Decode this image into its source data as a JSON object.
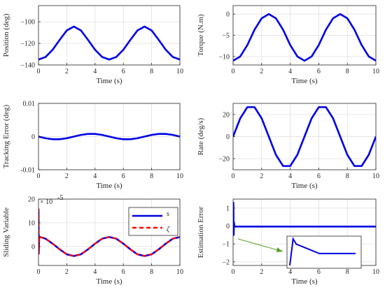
{
  "colors": {
    "line": "#0000e6",
    "dash": "#ff0000",
    "axis": "#262626",
    "grid": "#dcdcdc",
    "inset_arrow": "#5aa02c"
  },
  "chart_data": [
    {
      "id": "position",
      "type": "line",
      "xlabel": "Time (s)",
      "ylabel": "Position (deg)",
      "xlim": [
        0,
        10
      ],
      "ylim": [
        -140,
        -85
      ],
      "xticks": [
        0,
        2,
        4,
        6,
        8,
        10
      ],
      "yticks": [
        -140,
        -120,
        -100
      ],
      "grid": true,
      "series": [
        {
          "color": "#0000e6",
          "dashed": false,
          "x": [
            0,
            0.5,
            1,
            1.5,
            2,
            2.5,
            3,
            3.5,
            4,
            4.5,
            5,
            5.5,
            6,
            6.5,
            7,
            7.5,
            8,
            8.5,
            9,
            9.5,
            10
          ],
          "y": [
            -135,
            -132.6,
            -125.9,
            -116.7,
            -108,
            -104.4,
            -108,
            -116.7,
            -125.9,
            -132.6,
            -135,
            -132.6,
            -125.9,
            -116.7,
            -108,
            -104.4,
            -108,
            -116.7,
            -125.9,
            -132.6,
            -135
          ]
        }
      ]
    },
    {
      "id": "torque",
      "type": "line",
      "xlabel": "Time (s)",
      "ylabel": "Torque (N.m)",
      "xlim": [
        0,
        10
      ],
      "ylim": [
        -12,
        2
      ],
      "xticks": [
        0,
        2,
        4,
        6,
        8,
        10
      ],
      "yticks": [
        -10,
        -5,
        0
      ],
      "grid": true,
      "series": [
        {
          "color": "#0000e6",
          "dashed": false,
          "x": [
            0,
            0.5,
            1,
            1.5,
            2,
            2.5,
            3,
            3.5,
            4,
            4.5,
            5,
            5.5,
            6,
            6.5,
            7,
            7.5,
            8,
            8.5,
            9,
            9.5,
            10
          ],
          "y": [
            -11,
            -10,
            -7.3,
            -3.7,
            -1,
            0,
            -1,
            -3.7,
            -7.3,
            -10,
            -11,
            -10,
            -7.3,
            -3.7,
            -1,
            0,
            -1,
            -3.7,
            -7.3,
            -10,
            -11
          ]
        }
      ]
    },
    {
      "id": "tracking_error",
      "type": "line",
      "xlabel": "Time (s)",
      "ylabel": "Tracking Error (deg)",
      "xlim": [
        0,
        10
      ],
      "ylim": [
        -0.01,
        0.01
      ],
      "xticks": [
        0,
        2,
        4,
        6,
        8,
        10
      ],
      "yticks": [
        -0.01,
        0,
        0.01
      ],
      "ytick_labels": [
        "-0.01",
        "0",
        "0.01"
      ],
      "grid": true,
      "series": [
        {
          "color": "#0000e6",
          "dashed": false,
          "x": [
            0,
            0.5,
            1,
            1.5,
            2,
            2.5,
            3,
            3.5,
            4,
            4.5,
            5,
            5.5,
            6,
            6.5,
            7,
            7.5,
            8,
            8.5,
            9,
            9.5,
            10
          ],
          "y": [
            0,
            -0.0005,
            -0.0008,
            -0.0008,
            -0.0005,
            0,
            0.0005,
            0.0008,
            0.0008,
            0.0005,
            0,
            -0.0005,
            -0.0008,
            -0.0008,
            -0.0005,
            0,
            0.0005,
            0.0008,
            0.0008,
            0.0005,
            0
          ]
        }
      ]
    },
    {
      "id": "rate",
      "type": "line",
      "xlabel": "Time (s)",
      "ylabel": "Rate (deg/s)",
      "xlim": [
        0,
        10
      ],
      "ylim": [
        -30,
        30
      ],
      "xticks": [
        0,
        2,
        4,
        6,
        8,
        10
      ],
      "yticks": [
        -20,
        0,
        20
      ],
      "grid": true,
      "series": [
        {
          "color": "#0000e6",
          "dashed": false,
          "x": [
            0,
            0.5,
            1,
            1.5,
            2,
            2.5,
            3,
            3.5,
            4,
            4.5,
            5,
            5.5,
            6,
            6.5,
            7,
            7.5,
            8,
            8.5,
            9,
            9.5,
            10
          ],
          "y": [
            0,
            16.5,
            26.6,
            26.6,
            16.5,
            0,
            -16.5,
            -26.6,
            -26.6,
            -16.5,
            0,
            16.5,
            26.6,
            26.6,
            16.5,
            0,
            -16.5,
            -26.6,
            -26.6,
            -16.5,
            0
          ]
        }
      ]
    },
    {
      "id": "sliding",
      "type": "line",
      "xlabel": "Time (s)",
      "ylabel": "Sliding Variable",
      "xlim": [
        0,
        10
      ],
      "ylim": [
        -8,
        20
      ],
      "xticks": [
        0,
        2,
        4,
        6,
        8,
        10
      ],
      "yticks": [
        0,
        10,
        20
      ],
      "exponent_label": "× 10",
      "exponent_power": "-5",
      "grid": true,
      "legend": [
        "s",
        "ζ"
      ],
      "legend_position": "top-right",
      "series": [
        {
          "name": "s",
          "color": "#0000e6",
          "dashed": false,
          "x": [
            0,
            0.02,
            0.05,
            0.1,
            0.5,
            1,
            1.5,
            2,
            2.5,
            3,
            3.5,
            4,
            4.5,
            5,
            5.5,
            6,
            6.5,
            7,
            7.5,
            8,
            8.5,
            9,
            9.5,
            10
          ],
          "y": [
            16,
            -3,
            4.2,
            4,
            3.3,
            1.2,
            -1.2,
            -3.3,
            -4,
            -3.3,
            -1.2,
            1.2,
            3.3,
            4,
            3.3,
            1.2,
            -1.2,
            -3.3,
            -4,
            -3.3,
            -1.2,
            1.2,
            3.3,
            4
          ]
        },
        {
          "name": "ζ",
          "color": "#ff0000",
          "dashed": true,
          "x": [
            0,
            0.02,
            0.05,
            0.1,
            0.5,
            1,
            1.5,
            2,
            2.5,
            3,
            3.5,
            4,
            4.5,
            5,
            5.5,
            6,
            6.5,
            7,
            7.5,
            8,
            8.5,
            9,
            9.5,
            10
          ],
          "y": [
            16,
            -3,
            4.2,
            4,
            3.3,
            1.2,
            -1.2,
            -3.3,
            -4,
            -3.3,
            -1.2,
            1.2,
            3.3,
            4,
            3.3,
            1.2,
            -1.2,
            -3.3,
            -4,
            -3.3,
            -1.2,
            1.2,
            3.3,
            4
          ]
        }
      ]
    },
    {
      "id": "estimation",
      "type": "line",
      "xlabel": "Time (s)",
      "ylabel": "Estimation Error",
      "xlim": [
        0,
        10
      ],
      "ylim": [
        -2.2,
        1.5
      ],
      "xticks": [
        0,
        2,
        4,
        6,
        8,
        10
      ],
      "yticks": [
        -2,
        -1,
        0,
        1
      ],
      "grid": true,
      "series": [
        {
          "color": "#0000e6",
          "dashed": false,
          "x": [
            0,
            0.02,
            0.04,
            0.06,
            0.1,
            0.5,
            10
          ],
          "y": [
            0,
            1.3,
            -0.5,
            0.2,
            -0.03,
            -0.03,
            -0.03
          ]
        }
      ],
      "inset": {
        "series": [
          {
            "x": [
              0,
              0.05,
              0.1,
              0.45,
              1
            ],
            "y": [
              -1,
              1,
              0.6,
              -0.1,
              -0.1
            ]
          }
        ]
      }
    }
  ]
}
